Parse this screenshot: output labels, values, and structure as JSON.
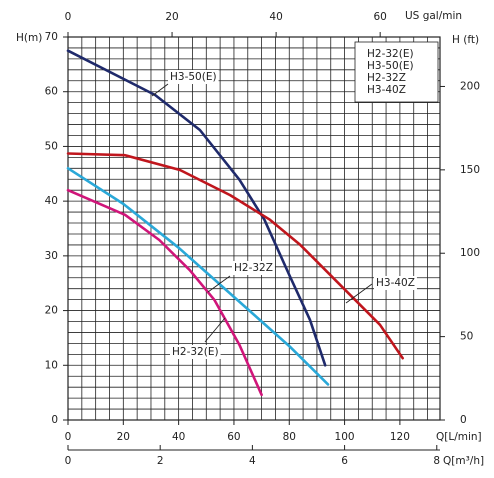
{
  "chart_data": {
    "type": "line",
    "ylabel": "H(m)",
    "y2label": "H (ft)",
    "xlabel": "Q[L/min]",
    "x2label": "US gal/min",
    "x3label": "Q[m³/h]",
    "xlim": [
      0,
      134.5
    ],
    "xticks": [
      0,
      20,
      40,
      60,
      80,
      100,
      120
    ],
    "x2lim": [
      0,
      71.5
    ],
    "x2ticks": [
      0,
      20,
      40,
      60
    ],
    "x3lim": [
      0,
      8.07
    ],
    "x3ticks": [
      0,
      2,
      4,
      6,
      8
    ],
    "ylim": [
      0,
      70
    ],
    "yticks": [
      0,
      10,
      20,
      30,
      40,
      50,
      60,
      70
    ],
    "y2lim": [
      0,
      229.66
    ],
    "y2ticks": [
      0,
      50,
      100,
      150,
      200
    ],
    "grid": {
      "x_step": 5,
      "y_step": 2
    },
    "series": [
      {
        "name": "H2-32(E)",
        "color": "#d0157a",
        "x": [
          0,
          20.6,
          33,
          44,
          53,
          62,
          70
        ],
        "values": [
          42,
          37.5,
          32.9,
          27.4,
          21.9,
          13.7,
          4.6
        ]
      },
      {
        "name": "H3-50(E)",
        "color": "#1f2a6b",
        "x": [
          0,
          31.5,
          47.7,
          62,
          71,
          80,
          87.5,
          93
        ],
        "values": [
          67.5,
          59.4,
          53,
          43.9,
          36.6,
          26.5,
          18.3,
          10
        ]
      },
      {
        "name": "H2-32Z",
        "color": "#2aa8d8",
        "x": [
          0,
          20,
          40,
          60,
          80,
          94
        ],
        "values": [
          46,
          39.5,
          31.5,
          22.5,
          13.5,
          6.5
        ]
      },
      {
        "name": "H3-40Z",
        "color": "#c0161d",
        "x": [
          0,
          20.6,
          40.5,
          58.6,
          73,
          84,
          98.4,
          112.8,
          121
        ],
        "values": [
          48.7,
          48.4,
          45.7,
          41.1,
          36.6,
          32,
          24.7,
          17.4,
          11.3
        ]
      }
    ],
    "annotations": [
      "H3-50(E)",
      "H2-32Z",
      "H3-40Z",
      "H2-32(E)"
    ]
  }
}
